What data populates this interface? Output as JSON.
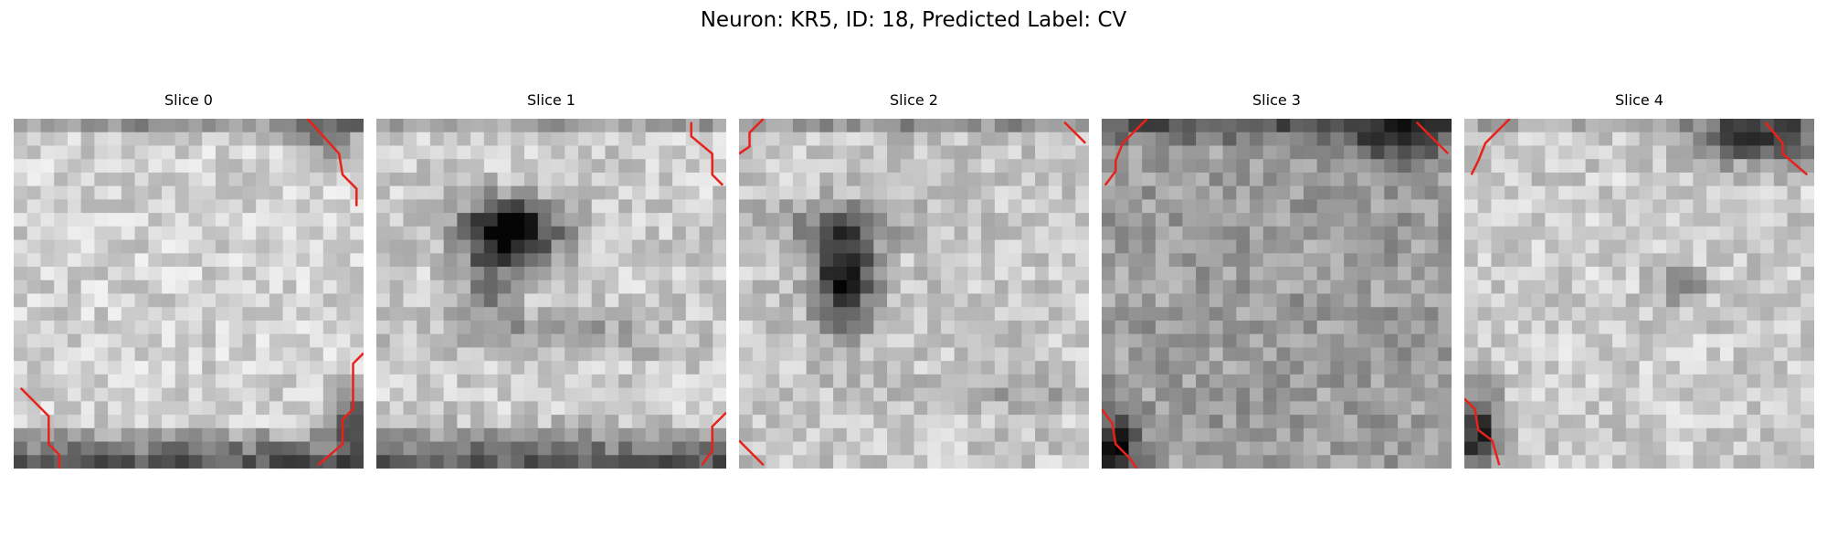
{
  "figure": {
    "title": "Neuron: KR5, ID: 18, Predicted Label: CV"
  },
  "slices": [
    {
      "title": "Slice 0"
    },
    {
      "title": "Slice 1"
    },
    {
      "title": "Slice 2"
    },
    {
      "title": "Slice 3"
    },
    {
      "title": "Slice 4"
    }
  ],
  "colors": {
    "contour": "#e8211b",
    "colormap": "gray"
  }
}
